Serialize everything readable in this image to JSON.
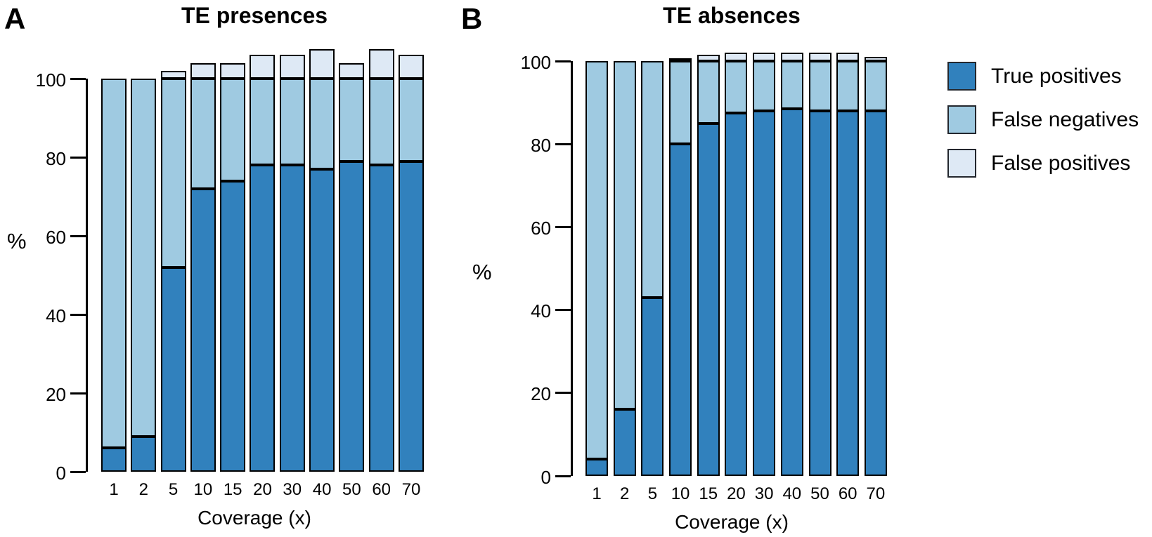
{
  "figure": {
    "panels": [
      {
        "corner_label": "A",
        "title": "TE presences",
        "y_axis_label": "%",
        "x_axis_label": "Coverage (x)",
        "y_ticks": [
          0,
          20,
          40,
          60,
          80,
          100
        ]
      },
      {
        "corner_label": "B",
        "title": "TE absences",
        "y_axis_label": "%",
        "x_axis_label": "Coverage (x)",
        "y_ticks": [
          0,
          20,
          40,
          60,
          80,
          100
        ]
      }
    ],
    "legend": {
      "items": [
        {
          "label": "True positives",
          "color": "#3181BD"
        },
        {
          "label": "False negatives",
          "color": "#9FCAE1"
        },
        {
          "label": "False positives",
          "color": "#DEE9F5"
        }
      ]
    },
    "colors": {
      "true_positives": "#3181BD",
      "false_negatives": "#9FCAE1",
      "false_positives": "#DEE9F5",
      "outline": "#000000"
    }
  },
  "chart_data": [
    {
      "type": "bar",
      "stacked": true,
      "title": "TE presences",
      "xlabel": "Coverage (x)",
      "ylabel": "%",
      "ylim": [
        0,
        100
      ],
      "axis_note": "stacks may exceed 100 because false positives are added on top",
      "categories": [
        "1",
        "2",
        "5",
        "10",
        "15",
        "20",
        "30",
        "40",
        "50",
        "60",
        "70"
      ],
      "series": [
        {
          "name": "True positives",
          "color": "#3181BD",
          "values": [
            6,
            9,
            52,
            72,
            74,
            78,
            78,
            77,
            79,
            78,
            79
          ]
        },
        {
          "name": "False negatives",
          "color": "#9FCAE1",
          "values": [
            94,
            91,
            48,
            28,
            26,
            22,
            22,
            23,
            21,
            22,
            21
          ]
        },
        {
          "name": "False positives",
          "color": "#DEE9F5",
          "values": [
            0,
            0,
            2,
            4,
            4,
            6,
            6,
            7.5,
            4,
            7.5,
            6
          ]
        }
      ]
    },
    {
      "type": "bar",
      "stacked": true,
      "title": "TE absences",
      "xlabel": "Coverage (x)",
      "ylabel": "%",
      "ylim": [
        0,
        100
      ],
      "axis_note": "stacks may exceed 100 because false positives are added on top",
      "categories": [
        "1",
        "2",
        "5",
        "10",
        "15",
        "20",
        "30",
        "40",
        "50",
        "60",
        "70"
      ],
      "series": [
        {
          "name": "True positives",
          "color": "#3181BD",
          "values": [
            4,
            16,
            43,
            80,
            85,
            87.5,
            88,
            88.5,
            88,
            88,
            88
          ]
        },
        {
          "name": "False negatives",
          "color": "#9FCAE1",
          "values": [
            96,
            84,
            57,
            20,
            15,
            12.5,
            12,
            11.5,
            12,
            12,
            12
          ]
        },
        {
          "name": "False positives",
          "color": "#DEE9F5",
          "values": [
            0,
            0,
            0,
            0.5,
            1.5,
            2,
            2,
            2,
            2,
            2,
            1
          ]
        }
      ]
    }
  ]
}
